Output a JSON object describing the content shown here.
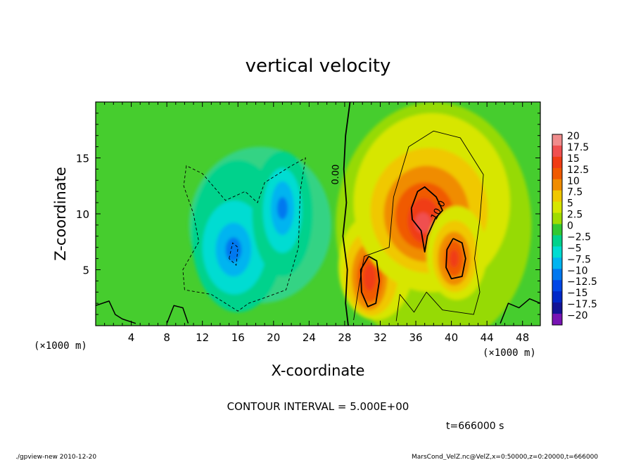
{
  "chart_data": {
    "type": "heatmap",
    "title": "vertical velocity",
    "xlabel": "X-coordinate",
    "ylabel": "Z-coordinate",
    "x_unit": "(×1000 m)",
    "z_unit": "(×1000 m)",
    "xlim": [
      0,
      50
    ],
    "ylim": [
      0,
      20
    ],
    "x_ticks": [
      "4",
      "8",
      "12",
      "16",
      "20",
      "24",
      "28",
      "32",
      "36",
      "40",
      "44",
      "48"
    ],
    "y_ticks": [
      "5",
      "10",
      "15"
    ],
    "contour_interval_label": "CONTOUR INTERVAL = 5.000E+00",
    "time_label": "t=666000 s",
    "contour_labels": [
      "0.00",
      "10.0"
    ],
    "colorbar": {
      "labels": [
        "20",
        "17.5",
        "15",
        "12.5",
        "10",
        "7.5",
        "5",
        "2.5",
        "0",
        "-2.5",
        "-5",
        "-7.5",
        "-10",
        "-12.5",
        "-15",
        "-17.5",
        "-20"
      ],
      "colors": [
        "#f08c8c",
        "#f05050",
        "#f03c14",
        "#f05a00",
        "#f08c00",
        "#f0c800",
        "#d7e600",
        "#a0dc00",
        "#32c832",
        "#00d28c",
        "#00dcd2",
        "#00b4f0",
        "#0078f0",
        "#0046e6",
        "#0028c8",
        "#141496",
        "#7814b4"
      ]
    },
    "features": [
      {
        "name": "updraft-left-core",
        "x": 30.8,
        "z": 4.3,
        "peak": 15
      },
      {
        "name": "updraft-central-core",
        "x": 36.8,
        "z": 9.2,
        "peak": 17.5
      },
      {
        "name": "updraft-right-core",
        "x": 40.3,
        "z": 6.0,
        "peak": 15
      },
      {
        "name": "downdraft-left",
        "x": 15.5,
        "z": 6.8,
        "peak": -10
      },
      {
        "name": "downdraft-right",
        "x": 21.0,
        "z": 10.5,
        "peak": -10
      }
    ]
  },
  "footer": {
    "left": "./gpview-new   2010-12-20",
    "right": "MarsCond_VelZ.nc@VelZ,x=0:50000,z=0:20000,t=666000"
  }
}
